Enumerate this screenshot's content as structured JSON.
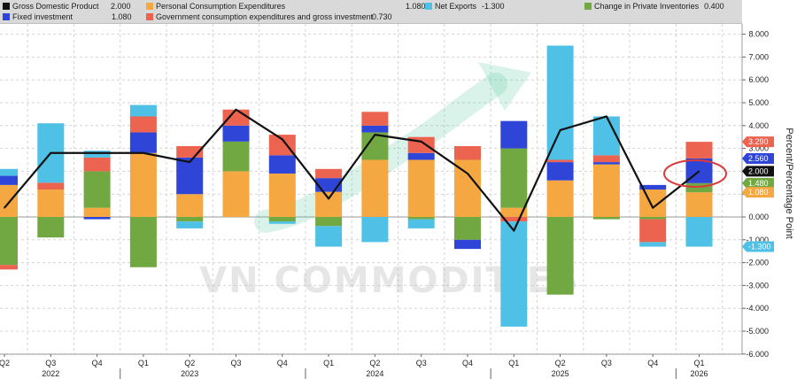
{
  "watermark": "VN COMMODITIES",
  "chart_data": {
    "type": "bar",
    "stacked": true,
    "ylabel": "Percent/Percentage Point",
    "ylim": [
      -6,
      8
    ],
    "yticks": [
      "8.000",
      "7.000",
      "6.000",
      "5.000",
      "4.000",
      "3.000",
      "2.000",
      "1.000",
      "0.000",
      "-1.000",
      "-2.000",
      "-3.000",
      "-4.000",
      "-5.000",
      "-6.000"
    ],
    "grid": true,
    "legend_position": "top",
    "categories": [
      "Q2 2022",
      "Q3 2022",
      "Q4 2022",
      "Q1 2023",
      "Q2 2023",
      "Q3 2023",
      "Q4 2023",
      "Q1 2024",
      "Q2 2024",
      "Q3 2024",
      "Q4 2024",
      "Q1 2025",
      "Q2 2025",
      "Q3 2025",
      "Q4 2025",
      "Q1 2026"
    ],
    "x_tick_labels": [
      "Q2",
      "Q3",
      "Q4",
      "Q1",
      "Q2",
      "Q3",
      "Q4",
      "Q1",
      "Q2",
      "Q3",
      "Q4",
      "Q1",
      "Q2",
      "Q3",
      "Q4",
      "Q1"
    ],
    "year_labels": [
      {
        "label": "2022",
        "index": 1
      },
      {
        "label": "2023",
        "index": 4
      },
      {
        "label": "2024",
        "index": 8
      },
      {
        "label": "2025",
        "index": 12
      },
      {
        "label": "2026",
        "index": 15
      }
    ],
    "series": [
      {
        "name": "Personal Consumption Expenditures",
        "color": "#f5a742",
        "legend_value": "1.080",
        "values": [
          1.4,
          1.2,
          0.4,
          2.8,
          1.0,
          2.0,
          1.9,
          1.1,
          2.5,
          2.5,
          2.5,
          0.4,
          1.6,
          2.3,
          1.2,
          1.08
        ]
      },
      {
        "name": "Change in Private Inventories",
        "color": "#72a842",
        "legend_value": "0.400",
        "values": [
          -2.1,
          -0.9,
          1.6,
          -2.2,
          -0.2,
          1.3,
          -0.2,
          -0.4,
          1.2,
          -0.1,
          -1.0,
          2.6,
          -3.4,
          -0.1,
          -0.1,
          0.4
        ]
      },
      {
        "name": "Fixed investment",
        "color": "#2f45d8",
        "legend_value": "1.080",
        "values": [
          0.4,
          0.0,
          -0.1,
          0.9,
          1.6,
          0.7,
          0.8,
          0.6,
          0.3,
          0.3,
          -0.4,
          1.2,
          0.8,
          0.1,
          0.2,
          1.08
        ]
      },
      {
        "name": "Government consumption expenditures and gross investment",
        "color": "#ec6350",
        "legend_value": "0.730",
        "values": [
          -0.2,
          0.3,
          0.6,
          0.7,
          0.5,
          0.7,
          0.9,
          0.4,
          0.6,
          0.7,
          0.6,
          -0.2,
          0.1,
          0.3,
          -1.0,
          0.73
        ]
      },
      {
        "name": "Net Exports",
        "color": "#4fc0e6",
        "legend_value": "-1.300",
        "values": [
          0.3,
          2.6,
          0.3,
          0.5,
          -0.3,
          0.0,
          -0.1,
          -0.9,
          -1.1,
          -0.4,
          0.0,
          -4.6,
          5.0,
          1.7,
          -0.2,
          -1.3
        ]
      }
    ],
    "line_series": {
      "name": "Gross Domestic Product",
      "color": "#111111",
      "legend_value": "2.000",
      "values": [
        0.4,
        2.8,
        2.8,
        2.8,
        2.4,
        4.7,
        3.4,
        0.8,
        3.6,
        3.3,
        1.9,
        -0.6,
        3.8,
        4.4,
        0.4,
        2.0
      ]
    },
    "value_tags": [
      {
        "text": "3.290",
        "value": 3.29,
        "color": "#ec6350"
      },
      {
        "text": "2.560",
        "value": 2.56,
        "color": "#2f45d8"
      },
      {
        "text": "2.000",
        "value": 2.0,
        "color": "#111111"
      },
      {
        "text": "1.480",
        "value": 1.48,
        "color": "#72a842"
      },
      {
        "text": "1.080",
        "value": 1.08,
        "color": "#f5a742"
      },
      {
        "text": "-1.300",
        "value": -1.3,
        "color": "#4fc0e6"
      }
    ]
  }
}
